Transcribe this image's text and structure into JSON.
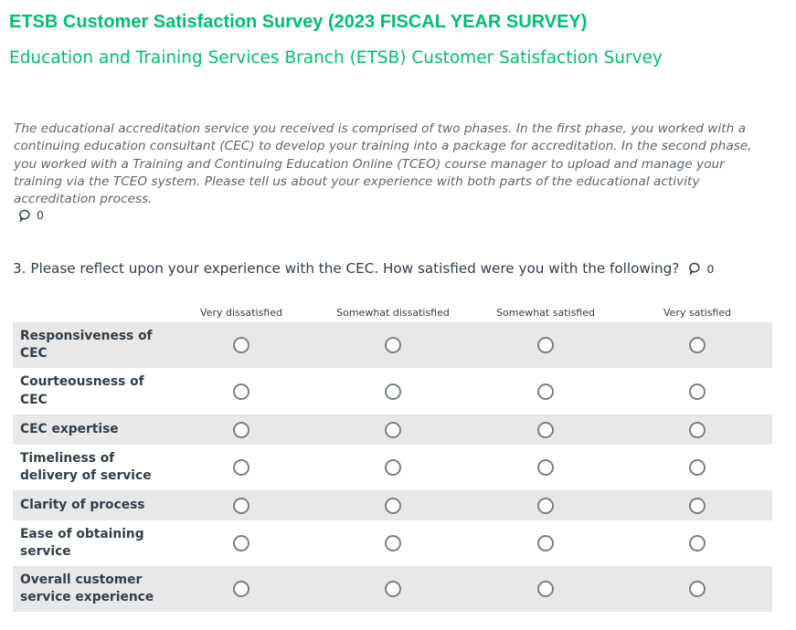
{
  "survey": {
    "title": "ETSB Customer Satisfaction Survey (2023 FISCAL YEAR SURVEY)",
    "page_title": "Education and Training Services Branch (ETSB) Customer Satisfaction Survey"
  },
  "intro": {
    "text": "The educational accreditation service you received is comprised of two phases. In the first phase, you worked with a continuing education consultant (CEC) to develop your training into a package for accreditation. In the second phase, you worked with a Training and Continuing Education Online (TCEO) course manager to upload and manage your training via the TCEO system. Please tell us about your experience with both parts of the educational activity accreditation process.",
    "comment_count": "0"
  },
  "question": {
    "text": "3. Please reflect upon your experience with the CEC. How satisfied were you with the following?",
    "comment_count": "0",
    "columns": [
      "Very dissatisfied",
      "Somewhat dissatisfied",
      "Somewhat satisfied",
      "Very satisfied"
    ],
    "rows": [
      {
        "line1": "Responsiveness of",
        "line2": "CEC"
      },
      {
        "line1": "Courteousness of",
        "line2": "CEC"
      },
      {
        "line1": "CEC expertise",
        "line2": ""
      },
      {
        "line1": "Timeliness of",
        "line2": "delivery of service"
      },
      {
        "line1": "Clarity of process",
        "line2": ""
      },
      {
        "line1": "Ease of obtaining",
        "line2": "service"
      },
      {
        "line1": "Overall customer",
        "line2": "service experience"
      }
    ]
  },
  "icons": {
    "comment": "speech-bubble-icon"
  },
  "colors": {
    "accent": "#00bf6f",
    "row_shade": "#e8e8e8",
    "text": "#333e48"
  }
}
